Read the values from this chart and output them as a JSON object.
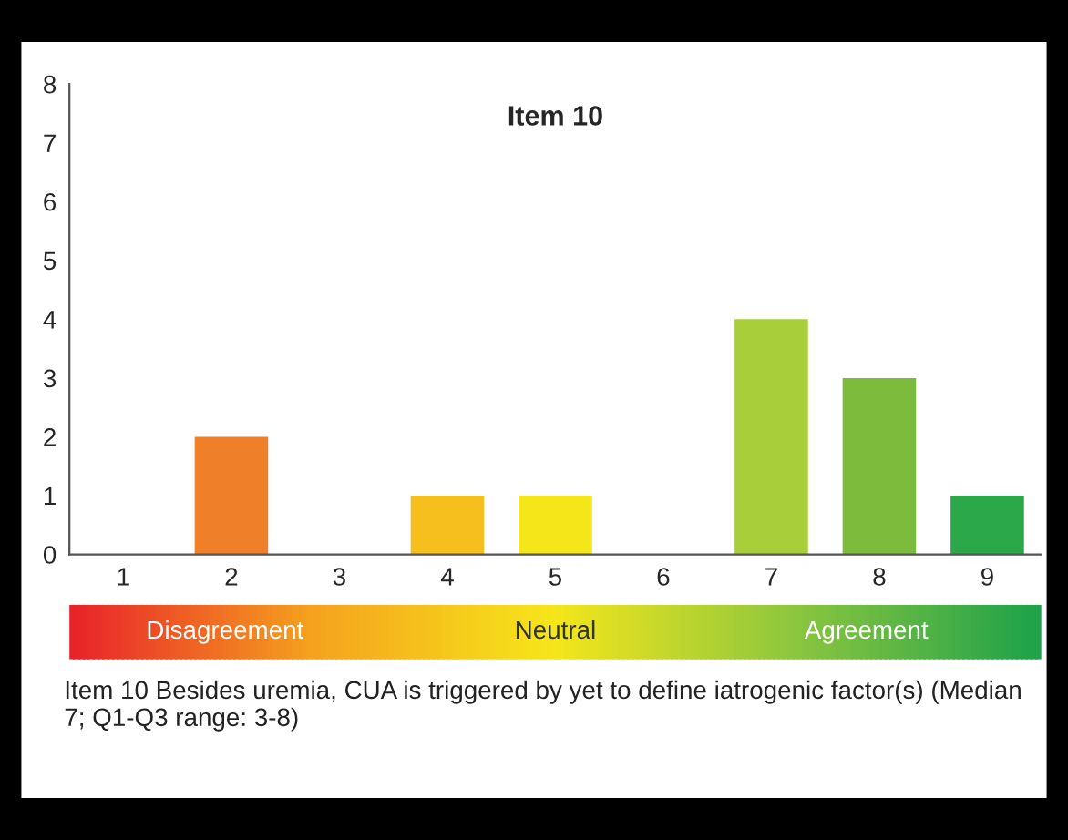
{
  "chart_data": {
    "type": "bar",
    "title": "Item 10",
    "categories": [
      "1",
      "2",
      "3",
      "4",
      "5",
      "6",
      "7",
      "8",
      "9"
    ],
    "values": [
      0,
      2,
      0,
      1,
      1,
      0,
      4,
      3,
      1
    ],
    "colors": [
      "#e8392b",
      "#f07f2a",
      "#f5a623",
      "#f7bf1e",
      "#f5e61a",
      "#d8e41e",
      "#a8cf3a",
      "#7dbb3c",
      "#2aa84a"
    ],
    "ylim": [
      0,
      8
    ],
    "yticks": [
      0,
      1,
      2,
      3,
      4,
      5,
      6,
      7,
      8
    ],
    "grid": false,
    "legend": false,
    "annotations": [
      "Disagreement",
      "Neutral",
      "Agreement",
      "Item 10 Besides uremia, CUA is triggered by yet to define iatrogenic factor(s) (Median 7; Q1-Q3 range: 3-8)"
    ]
  }
}
